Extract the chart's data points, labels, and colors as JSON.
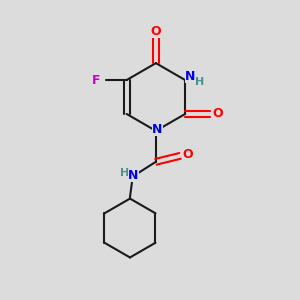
{
  "background_color": "#dcdcdc",
  "atom_colors": {
    "C": "#1a1a1a",
    "N": "#0000ee",
    "O": "#ff0000",
    "F": "#cc00cc",
    "H": "#4d9090"
  },
  "figsize": [
    3.0,
    3.0
  ],
  "dpi": 100
}
